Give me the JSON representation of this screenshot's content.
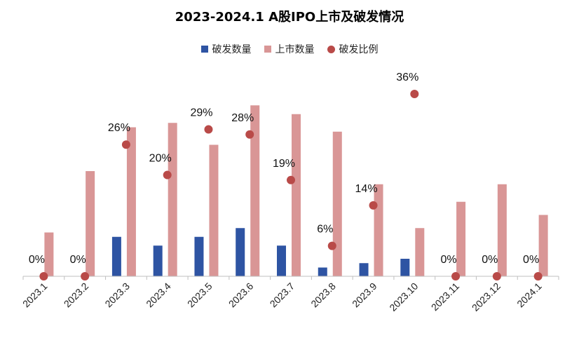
{
  "chart_data": {
    "type": "bar",
    "title": "2023-2024.1 A股IPO上市及破发情况",
    "categories": [
      "2023.1",
      "2023.2",
      "2023.3",
      "2023.4",
      "2023.5",
      "2023.6",
      "2023.7",
      "2023.8",
      "2023.9",
      "2023.10",
      "2023.11",
      "2023.12",
      "2024.1"
    ],
    "series": [
      {
        "name": "破发数量",
        "kind": "bar",
        "color": "#2e54a3",
        "values": [
          0,
          0,
          9,
          7,
          9,
          11,
          7,
          2,
          3,
          4,
          0,
          0,
          0
        ]
      },
      {
        "name": "上市数量",
        "kind": "bar",
        "color": "#d99696",
        "values": [
          10,
          24,
          34,
          35,
          30,
          39,
          37,
          33,
          21,
          11,
          17,
          21,
          14
        ]
      },
      {
        "name": "破发比例",
        "kind": "scatter",
        "color": "#b94a48",
        "values": [
          0,
          0,
          26,
          20,
          29,
          28,
          19,
          6,
          14,
          36,
          0,
          0,
          0
        ],
        "labels": [
          "0%",
          "0%",
          "26%",
          "20%",
          "29%",
          "28%",
          "19%",
          "6%",
          "14%",
          "36%",
          "0%",
          "0%",
          "0%"
        ],
        "unit": "%"
      }
    ],
    "legend": {
      "position": "top",
      "items": [
        "破发数量",
        "上市数量",
        "破发比例"
      ]
    },
    "grid": false
  }
}
